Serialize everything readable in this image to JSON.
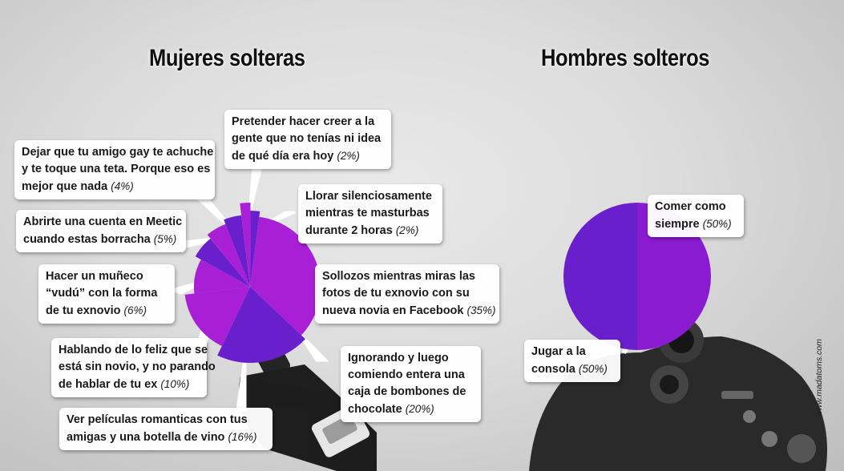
{
  "chart_data": [
    {
      "type": "pie",
      "title": "Mujeres solteras",
      "slices": [
        {
          "label": "Sollozos mientras miras las fotos de tu exnovio con su nueva novia en Facebook",
          "value": 35
        },
        {
          "label": "Ignorando y luego comiendo entera una caja de bombones de chocolate",
          "value": 20
        },
        {
          "label": "Ver películas romanticas con tus amigas y una botella de vino",
          "value": 16
        },
        {
          "label": "Hablando de lo feliz que se está sin novio, y no parando de hablar de tu ex",
          "value": 10
        },
        {
          "label": "Hacer un muñeco “vudú” con la forma de tu exnovio",
          "value": 6
        },
        {
          "label": "Abrirte una cuenta en Meetic cuando estas borracha",
          "value": 5
        },
        {
          "label": "Dejar que tu amigo gay te achuche y te toque una teta. Porque eso es mejor que nada",
          "value": 4
        },
        {
          "label": "Pretender hacer creer a la gente que no tenías ni idea de qué día era hoy",
          "value": 2
        },
        {
          "label": "Llorar silenciosamente mientras te masturbas durante 2 horas",
          "value": 2
        }
      ]
    },
    {
      "type": "pie",
      "title": "Hombres solteros",
      "slices": [
        {
          "label": "Comer como siempre",
          "value": 50
        },
        {
          "label": "Jugar a la consola",
          "value": 50
        }
      ]
    }
  ],
  "colors": {
    "magenta": "#a81fd6",
    "violet": "#6a1fcc",
    "purple": "#8a1bd0"
  },
  "titles": {
    "women": "Mujeres solteras",
    "men": "Hombres solteros"
  },
  "callouts": {
    "pretender": {
      "lines": [
        "Pretender hacer creer a la",
        "gente que no tenías ni idea",
        "de qué día era hoy"
      ],
      "pct": "(2%)"
    },
    "dejar": {
      "lines": [
        "Dejar que tu amigo gay te achuche",
        "y te toque una teta. Porque eso es",
        "mejor que nada"
      ],
      "pct": "(4%)"
    },
    "llorar": {
      "lines": [
        "Llorar silenciosamente",
        "mientras te masturbas",
        "durante 2 horas"
      ],
      "pct": "(2%)"
    },
    "meetic": {
      "lines": [
        "Abrirte una cuenta en Meetic",
        "cuando estas borracha"
      ],
      "pct": "(5%)"
    },
    "sollozos": {
      "lines": [
        "Sollozos mientras miras las",
        "fotos de tu exnovio con su",
        "nueva novia en Facebook"
      ],
      "pct": "(35%)"
    },
    "vudu": {
      "lines": [
        "Hacer un muñeco",
        "“vudú” con la forma",
        "de tu exnovio"
      ],
      "pct": "(6%)"
    },
    "hablando": {
      "lines": [
        "Hablando de lo feliz que se",
        "está sin novio, y no parando",
        "de hablar de tu ex"
      ],
      "pct": "(10%)"
    },
    "ignorando": {
      "lines": [
        "Ignorando y luego",
        "comiendo entera una",
        "caja de bombones de",
        "chocolate"
      ],
      "pct": "(20%)"
    },
    "peliculas": {
      "lines": [
        "Ver películas romanticas con tus",
        "amigas y una botella de vino"
      ],
      "pct": "(16%)"
    },
    "comer": {
      "lines": [
        "Comer como",
        "siempre"
      ],
      "pct": "(50%)"
    },
    "jugar": {
      "lines": [
        "Jugar a la",
        "consola"
      ],
      "pct": "(50%)"
    }
  },
  "watermark": "www.madatoms.com"
}
